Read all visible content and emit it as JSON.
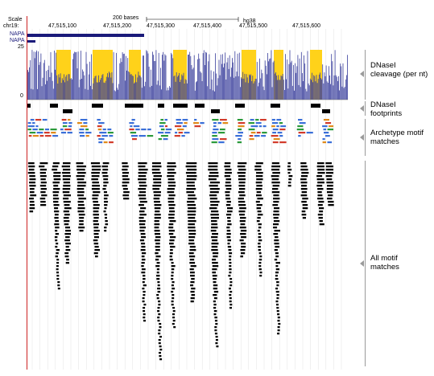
{
  "ruler": {
    "scale_label": "Scale",
    "scale_value": "200 bases",
    "assembly": "hg38",
    "chrom_label": "chr19:",
    "positions": [
      "47,515,100",
      "47,515,200",
      "47,515,300",
      "47,515,400",
      "47,515,500",
      "47,515,600"
    ]
  },
  "genes": [
    {
      "name": "NAPA"
    },
    {
      "name": "NAPA"
    }
  ],
  "signal": {
    "ymax": "25",
    "ymin": "0"
  },
  "tracks": [
    {
      "label": "DNaseI cleavage (per nt)"
    },
    {
      "label": "DNaseI footprints"
    },
    {
      "label": "Archetype motif matches"
    },
    {
      "label": "All motif matches"
    }
  ],
  "colors": {
    "signal": "#3a3f9c",
    "highlight": "#ffd21a",
    "gene": "#1a1a7a",
    "footprint": "#000000",
    "motif_blue": "#3a6fd8",
    "motif_red": "#d23a2a",
    "motif_green": "#2a9a3a",
    "motif_orange": "#e08a1a",
    "motif_black": "#000000",
    "frame": "#cc2222"
  }
}
